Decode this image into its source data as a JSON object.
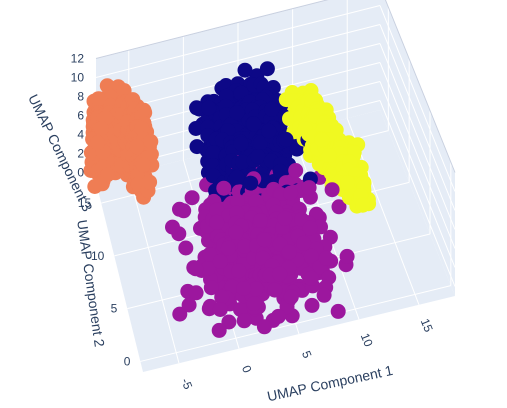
{
  "chart_data": {
    "type": "scatter",
    "is_3d": true,
    "colors": {
      "background": "#e5ecf6",
      "grid": "#ffffff",
      "axis_text": "#2a3f5f"
    },
    "axes": {
      "x": {
        "title": "UMAP Component 1",
        "ticks": [
          -5,
          0,
          5,
          10,
          15
        ],
        "range": [
          -8,
          18
        ]
      },
      "y": {
        "title": "UMAP Component 2",
        "ticks": [
          0,
          5,
          10,
          15
        ],
        "range": [
          -1,
          17
        ]
      },
      "z": {
        "title": "UMAP Component 3",
        "ticks": [
          0,
          2,
          4,
          6,
          8,
          10,
          12
        ],
        "range": [
          -1,
          12
        ]
      }
    },
    "clusters": [
      {
        "color": "#ef7d54",
        "center": [
          -6.5,
          14,
          4
        ],
        "extent": [
          1.3,
          3.2,
          3.5
        ],
        "shape": "arc-left"
      },
      {
        "color": "#9c179e",
        "center": [
          3,
          4,
          4
        ],
        "extent": [
          3.5,
          3.2,
          3.0
        ],
        "shape": "blob"
      },
      {
        "color": "#0d0887",
        "center": [
          3.5,
          9,
          9
        ],
        "extent": [
          2.2,
          2.2,
          2.5
        ],
        "shape": "blob"
      },
      {
        "color": "#f0f921",
        "center": [
          9,
          8,
          8
        ],
        "extent": [
          2.5,
          2.5,
          4.5
        ],
        "shape": "arc-right"
      }
    ]
  }
}
